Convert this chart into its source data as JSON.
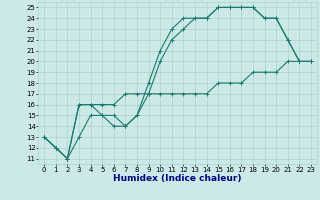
{
  "xlabel": "Humidex (Indice chaleur)",
  "xlim": [
    -0.5,
    23.5
  ],
  "ylim": [
    10.5,
    25.5
  ],
  "yticks": [
    11,
    12,
    13,
    14,
    15,
    16,
    17,
    18,
    19,
    20,
    21,
    22,
    23,
    24,
    25
  ],
  "xticks": [
    0,
    1,
    2,
    3,
    4,
    5,
    6,
    7,
    8,
    9,
    10,
    11,
    12,
    13,
    14,
    15,
    16,
    17,
    18,
    19,
    20,
    21,
    22,
    23
  ],
  "bg_color": "#cce9e7",
  "grid_color": "#aad4d1",
  "line_color": "#1a7a6e",
  "series1_x": [
    0,
    1,
    2,
    3,
    4,
    5,
    6,
    7,
    8,
    9,
    10,
    11,
    12,
    13,
    14,
    15,
    16,
    17,
    18,
    19,
    20,
    21,
    22,
    23
  ],
  "series1_y": [
    13,
    12,
    11,
    16,
    16,
    15,
    15,
    14,
    15,
    18,
    21,
    23,
    24,
    24,
    24,
    25,
    25,
    25,
    25,
    24,
    24,
    22,
    20,
    20
  ],
  "series2_x": [
    0,
    1,
    2,
    3,
    4,
    5,
    6,
    7,
    8,
    9,
    10,
    11,
    12,
    13,
    14,
    15,
    16,
    17,
    18,
    19,
    20,
    21,
    22,
    23
  ],
  "series2_y": [
    13,
    12,
    11,
    13,
    15,
    15,
    14,
    14,
    15,
    17,
    20,
    22,
    23,
    24,
    24,
    25,
    25,
    25,
    25,
    24,
    24,
    22,
    20,
    20
  ],
  "series3_x": [
    0,
    1,
    2,
    3,
    4,
    5,
    6,
    7,
    8,
    9,
    10,
    11,
    12,
    13,
    14,
    15,
    16,
    17,
    18,
    19,
    20,
    21,
    22,
    23
  ],
  "series3_y": [
    13,
    12,
    11,
    16,
    16,
    16,
    16,
    17,
    17,
    17,
    17,
    17,
    17,
    17,
    17,
    18,
    18,
    18,
    19,
    19,
    19,
    20,
    20,
    20
  ],
  "xlabel_color": "#00008b",
  "xlabel_fontsize": 6.5,
  "tick_fontsize": 5,
  "linewidth": 0.8,
  "markersize": 3.5
}
